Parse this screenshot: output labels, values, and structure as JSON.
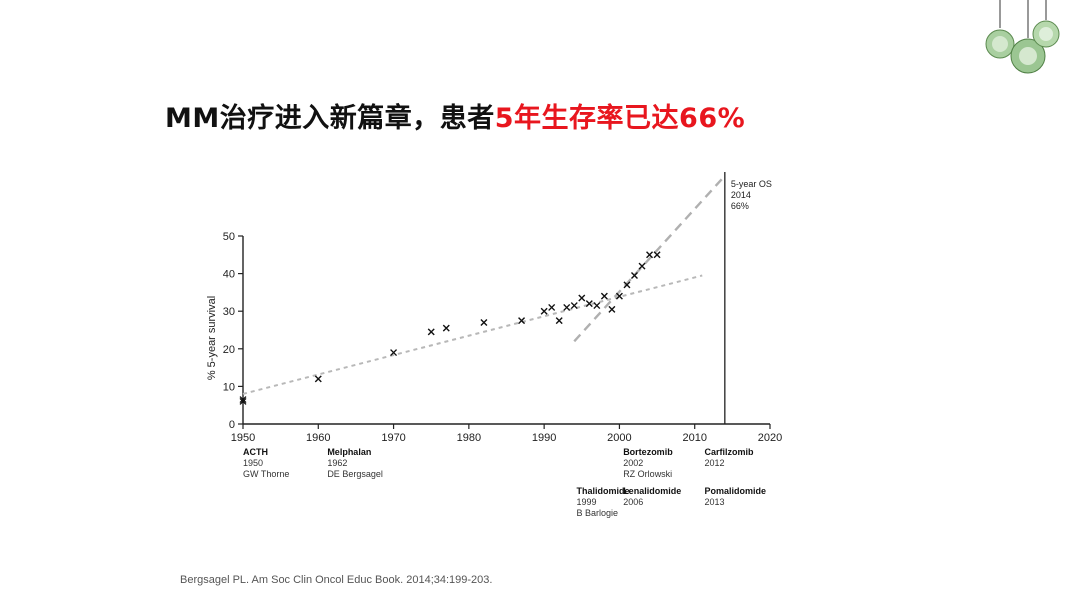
{
  "slide": {
    "title_part1": "MM治疗进入新篇章，患者",
    "title_highlight": "5年生存率已达66%",
    "citation": "Bergsagel PL. Am Soc Clin Oncol Educ Book. 2014;34:199-203.",
    "highlight_color": "#e8161e"
  },
  "chart_data": {
    "type": "scatter",
    "ylabel": "% 5-year survival",
    "xlabel": "",
    "xlim": [
      1950,
      2020
    ],
    "ylim": [
      0,
      50
    ],
    "xticks": [
      1950,
      1960,
      1970,
      1980,
      1990,
      2000,
      2010,
      2020
    ],
    "yticks": [
      0,
      10,
      20,
      30,
      40,
      50
    ],
    "points": [
      {
        "x": 1950,
        "y": 6.5
      },
      {
        "x": 1950,
        "y": 6
      },
      {
        "x": 1960,
        "y": 12
      },
      {
        "x": 1970,
        "y": 19
      },
      {
        "x": 1975,
        "y": 24.5
      },
      {
        "x": 1977,
        "y": 25.5
      },
      {
        "x": 1982,
        "y": 27
      },
      {
        "x": 1987,
        "y": 27.5
      },
      {
        "x": 1990,
        "y": 30
      },
      {
        "x": 1991,
        "y": 31
      },
      {
        "x": 1992,
        "y": 27.5
      },
      {
        "x": 1993,
        "y": 31
      },
      {
        "x": 1994,
        "y": 31.5
      },
      {
        "x": 1995,
        "y": 33.5
      },
      {
        "x": 1996,
        "y": 32
      },
      {
        "x": 1997,
        "y": 31.5
      },
      {
        "x": 1998,
        "y": 34
      },
      {
        "x": 1999,
        "y": 30.5
      },
      {
        "x": 2000,
        "y": 34
      },
      {
        "x": 2001,
        "y": 37
      },
      {
        "x": 2002,
        "y": 39.5
      },
      {
        "x": 2003,
        "y": 42
      },
      {
        "x": 2004,
        "y": 45
      },
      {
        "x": 2005,
        "y": 45
      }
    ],
    "trend_lines": [
      {
        "from": [
          1950,
          8
        ],
        "to": [
          2011,
          39.5
        ]
      },
      {
        "from": [
          1994,
          22
        ],
        "to": [
          2014,
          66
        ]
      }
    ],
    "vertical_marker": {
      "x": 2014,
      "label_lines": [
        "5-year OS",
        "2014",
        "66%"
      ]
    },
    "drug_annotations": [
      {
        "drug": "ACTH",
        "year": "1950",
        "author": "GW Thorne",
        "x": 1950,
        "row": 0
      },
      {
        "drug": "Melphalan",
        "year": "1962",
        "author": "DE Bergsagel",
        "x": 1961.2,
        "row": 0
      },
      {
        "drug": "Bortezomib",
        "year": "2002",
        "author": "RZ Orlowski",
        "x": 2000.5,
        "row": 0
      },
      {
        "drug": "Carfilzomib",
        "year": "2012",
        "author": "",
        "x": 2011.3,
        "row": 0
      },
      {
        "drug": "Thalidomide",
        "year": "1999",
        "author": "B Barlogie",
        "x": 1994.3,
        "row": 1
      },
      {
        "drug": "Lenalidomide",
        "year": "2006",
        "author": "",
        "x": 2000.5,
        "row": 1
      },
      {
        "drug": "Pomalidomide",
        "year": "2013",
        "author": "",
        "x": 2011.3,
        "row": 1
      }
    ]
  }
}
